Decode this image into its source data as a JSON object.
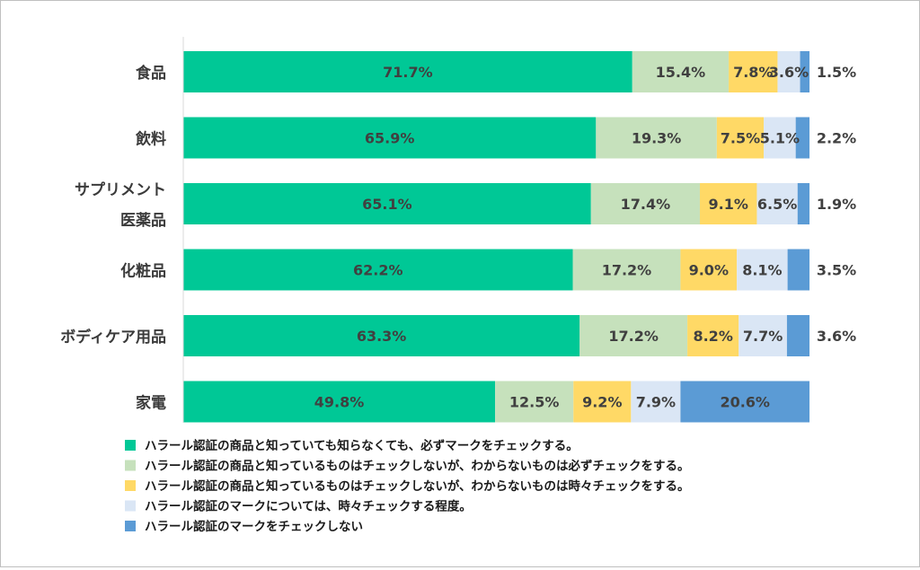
{
  "chart_data": {
    "type": "bar",
    "orientation": "horizontal",
    "stacked": true,
    "percent": true,
    "categories": [
      [
        "食品"
      ],
      [
        "飲料"
      ],
      [
        "サプリメント",
        "医薬品"
      ],
      [
        "化粧品"
      ],
      [
        "ボディケア用品"
      ],
      [
        "家電"
      ]
    ],
    "series": [
      {
        "name": "ハラール認証の商品と知っていても知らなくても、必ずマークをチェックする。",
        "color": "#00c896",
        "values": [
          71.7,
          65.9,
          65.1,
          62.2,
          63.3,
          49.8
        ]
      },
      {
        "name": "ハラール認証の商品と知っているものはチェックしないが、わからないものは必ずチェックをする。",
        "color": "#c6e1bc",
        "values": [
          15.4,
          19.3,
          17.4,
          17.2,
          17.2,
          12.5
        ]
      },
      {
        "name": "ハラール認証の商品と知っているものはチェックしないが、わからないものは時々チェックをする。",
        "color": "#ffd966",
        "values": [
          7.8,
          7.5,
          9.1,
          9.0,
          8.2,
          9.2
        ]
      },
      {
        "name": "ハラール認証のマークについては、時々チェックする程度。",
        "color": "#dae6f5",
        "values": [
          3.6,
          5.1,
          6.5,
          8.1,
          7.7,
          7.9
        ]
      },
      {
        "name": "ハラール認証のマークをチェックしない",
        "color": "#5b9bd5",
        "values": [
          1.5,
          2.2,
          1.9,
          3.5,
          3.6,
          20.6
        ]
      }
    ],
    "value_labels": [
      [
        "71.7%",
        "15.4%",
        "7.8%",
        "3.6%",
        "1.5%"
      ],
      [
        "65.9%",
        "19.3%",
        "7.5%",
        "5.1%",
        "2.2%"
      ],
      [
        "65.1%",
        "17.4%",
        "9.1%",
        "6.5%",
        "1.9%"
      ],
      [
        "62.2%",
        "17.2%",
        "9.0%",
        "8.1%",
        "3.5%"
      ],
      [
        "63.3%",
        "17.2%",
        "8.2%",
        "7.7%",
        "3.6%"
      ],
      [
        "49.8%",
        "12.5%",
        "9.2%",
        "7.9%",
        "20.6%"
      ]
    ],
    "xlim": [
      0,
      100
    ],
    "grid": false,
    "legend_position": "bottom"
  }
}
